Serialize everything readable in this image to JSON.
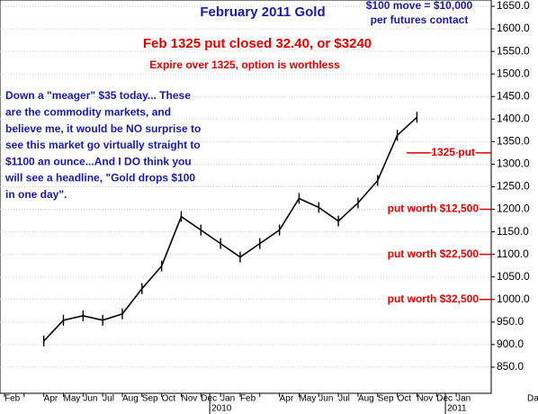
{
  "chart_data": {
    "type": "line",
    "title": "February 2011 Gold",
    "note_lines": [
      "$100 move = $10,000",
      "per futures contact"
    ],
    "headline": "Feb 1325 put closed 32.40, or $3240",
    "subheadline": "Expire over 1325, option is worthless",
    "comment_lines": [
      "Down a \"meager\" $35 today... These",
      "are the commodity markets, and",
      "believe me, it would be NO surprise to",
      "see this market go virtually straight to",
      "$1100 an ounce...And I DO think you",
      "will see a headline, \"Gold drops $100",
      "in one day\"."
    ],
    "level_labels": [
      {
        "text": "1325 put",
        "value": 1325
      },
      {
        "text": "put worth $12,500",
        "value": 1200
      },
      {
        "text": "put worth $22,500",
        "value": 1100
      },
      {
        "text": "put worth $32,500",
        "value": 1000
      }
    ],
    "categories": [
      "Feb",
      null,
      "Apr",
      "May",
      "Jun",
      "Jul",
      "Aug",
      "Sep",
      "Oct",
      "Nov",
      "Dec",
      "Jan",
      "Feb",
      null,
      "Apr",
      "May",
      "Jun",
      "Jul",
      "Aug",
      "Sep",
      "Oct",
      "Nov",
      "Dec",
      "Jan"
    ],
    "year_labels": [
      {
        "text": "2010",
        "index": 11
      },
      {
        "text": "2011",
        "index": 23
      }
    ],
    "x_axis_label": "Da",
    "series": [
      {
        "name": "Gold",
        "color": "#000000",
        "values": [
          null,
          null,
          908,
          954,
          964,
          954,
          968,
          1024,
          1074,
          1184,
          1154,
          1124,
          1094,
          1124,
          1154,
          1224,
          1204,
          1174,
          1214,
          1264,
          1364,
          1404,
          null,
          null
        ]
      }
    ],
    "ylim": [
      792,
      1664
    ],
    "yticks": [
      {
        "value": 850,
        "label": "850.0"
      },
      {
        "value": 900,
        "label": "900.0"
      },
      {
        "value": 950,
        "label": "950.0"
      },
      {
        "value": 1000,
        "label": "1000.0"
      },
      {
        "value": 1050,
        "label": "1050.0"
      },
      {
        "value": 1100,
        "label": "1100.0"
      },
      {
        "value": 1150,
        "label": "1150.0"
      },
      {
        "value": 1200,
        "label": "1200.0"
      },
      {
        "value": 1250,
        "label": "1250.0"
      },
      {
        "value": 1300,
        "label": "1300.0"
      },
      {
        "value": 1350,
        "label": "1350.0"
      },
      {
        "value": 1400,
        "label": "1400.0"
      },
      {
        "value": 1450,
        "label": "1450.0"
      },
      {
        "value": 1500,
        "label": "1500.0"
      },
      {
        "value": 1550,
        "label": "1550.0"
      },
      {
        "value": 1600,
        "label": "1600.0"
      },
      {
        "value": 1650,
        "label": "1650.0"
      }
    ],
    "grid": true,
    "annotation_color": "#e00000",
    "text_color": "#1a1aa6"
  }
}
